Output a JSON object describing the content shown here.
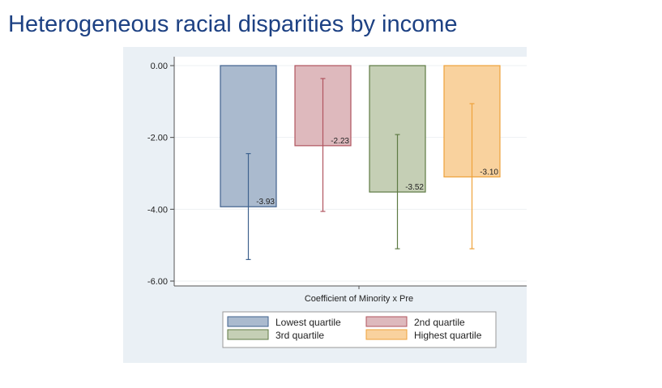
{
  "title": "Heterogeneous racial disparities by income",
  "chart_data": {
    "type": "bar",
    "xlabel": "Coefficient of Minority x Pre",
    "ylabel": "",
    "ylim": [
      -6,
      0
    ],
    "yticks": [
      0,
      -2,
      -4,
      -6
    ],
    "ytick_labels": [
      "0.00",
      "-2.00",
      "-4.00",
      "-6.00"
    ],
    "legend_position": "bottom",
    "series": [
      {
        "name": "Lowest quartile",
        "value": -3.93,
        "label": "-3.93",
        "ci": [
          -5.4,
          -2.45
        ],
        "fill": "#aabace",
        "stroke": "#3f628e"
      },
      {
        "name": "2nd quartile",
        "value": -2.23,
        "label": "-2.23",
        "ci": [
          -4.06,
          -0.36
        ],
        "fill": "#deb9bd",
        "stroke": "#b0545f"
      },
      {
        "name": "3rd quartile",
        "value": -3.52,
        "label": "-3.52",
        "ci": [
          -5.1,
          -1.92
        ],
        "fill": "#c5cfb5",
        "stroke": "#5e7a44"
      },
      {
        "name": "Highest quartile",
        "value": -3.1,
        "label": "-3.10",
        "ci": [
          -5.1,
          -1.06
        ],
        "fill": "#f9d29e",
        "stroke": "#eea23b"
      }
    ]
  }
}
